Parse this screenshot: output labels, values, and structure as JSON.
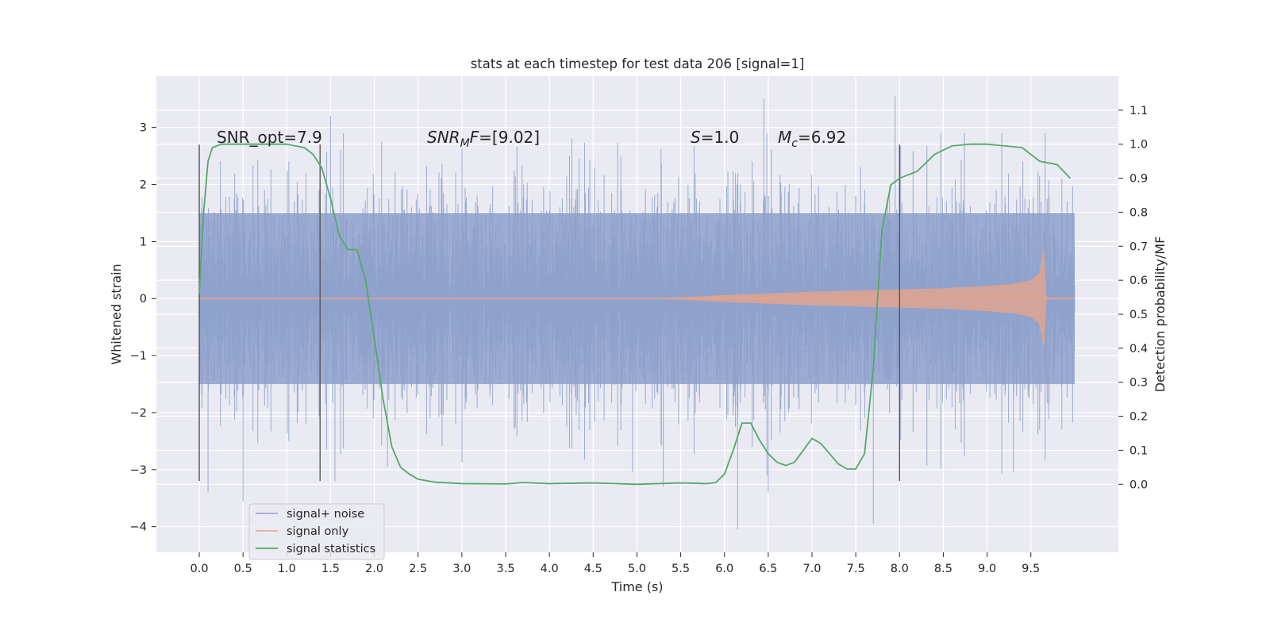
{
  "chart_data": {
    "type": "line",
    "title": "stats at each timestep for test data 206 [signal=1]",
    "xlabel": "Time (s)",
    "ylabel_left": "Whitened strain",
    "ylabel_right": "Detection probability/MF",
    "xlim": [
      -0.49,
      10.5
    ],
    "ylim_left": [
      -4.45,
      3.9
    ],
    "ylim_right": [
      -0.2,
      1.2
    ],
    "x_ticks": [
      "0.0",
      "0.5",
      "1.0",
      "1.5",
      "2.0",
      "2.5",
      "3.0",
      "3.5",
      "4.0",
      "4.5",
      "5.0",
      "5.5",
      "6.0",
      "6.5",
      "7.0",
      "7.5",
      "8.0",
      "8.5",
      "9.0",
      "9.5"
    ],
    "y_ticks_left": [
      "3",
      "2",
      "1",
      "0",
      "−1",
      "−2",
      "−3",
      "−4"
    ],
    "y_ticks_right": [
      "1.1",
      "1.0",
      "0.9",
      "0.8",
      "0.7",
      "0.6",
      "0.5",
      "0.4",
      "0.3",
      "0.2",
      "0.1",
      "0.0"
    ],
    "grid": true,
    "legend_position": "lower-left",
    "annotations": {
      "snr_opt": "SNR_opt=7.9",
      "snr_mf_label": "SNR",
      "snr_mf_sub": "M",
      "snr_mf_italic": "F",
      "snr_mf_value": "=[9.02]",
      "s_label": "S",
      "s_value": "=1.0",
      "mc_label": "M",
      "mc_sub": "c",
      "mc_value": "=6.92"
    },
    "vertical_markers_x": [
      0.0,
      1.38,
      8.0
    ],
    "series": [
      {
        "name": "signal+ noise",
        "color": "#8da0cb",
        "axis": "left",
        "description_points": {
          "x_range": [
            0.0,
            10.0
          ],
          "core_band": [
            -1.5,
            1.5
          ],
          "extreme_values": [
            {
              "x": 0.1,
              "y": -3.4
            },
            {
              "x": 0.5,
              "y": -3.55
            },
            {
              "x": 1.5,
              "y": 3.2
            },
            {
              "x": 1.55,
              "y": -3.2
            },
            {
              "x": 2.15,
              "y": -2.95
            },
            {
              "x": 4.95,
              "y": -3.05
            },
            {
              "x": 5.3,
              "y": -3.3
            },
            {
              "x": 6.15,
              "y": -4.05
            },
            {
              "x": 6.45,
              "y": 3.5
            },
            {
              "x": 6.5,
              "y": -3.4
            },
            {
              "x": 7.7,
              "y": -3.95
            },
            {
              "x": 7.95,
              "y": 3.55
            },
            {
              "x": 9.3,
              "y": -3.05
            }
          ]
        }
      },
      {
        "name": "signal only",
        "color": "#e5a58b",
        "axis": "left",
        "envelope": {
          "x": [
            0.0,
            5.0,
            5.5,
            6.0,
            6.5,
            7.0,
            7.5,
            8.0,
            8.5,
            9.0,
            9.3,
            9.5,
            9.6,
            9.65,
            9.68,
            10.0
          ],
          "amp": [
            0.0,
            0.0,
            0.02,
            0.06,
            0.09,
            0.12,
            0.14,
            0.16,
            0.18,
            0.22,
            0.26,
            0.32,
            0.45,
            0.9,
            0.02,
            0.0
          ]
        }
      },
      {
        "name": "signal statistics",
        "color": "#55a868",
        "axis": "right",
        "x": [
          0.0,
          0.05,
          0.1,
          0.15,
          0.25,
          0.5,
          0.8,
          1.0,
          1.2,
          1.3,
          1.4,
          1.5,
          1.6,
          1.7,
          1.8,
          1.9,
          2.0,
          2.1,
          2.2,
          2.3,
          2.4,
          2.5,
          2.7,
          3.0,
          3.5,
          3.7,
          4.0,
          4.5,
          5.0,
          5.5,
          5.8,
          5.9,
          6.0,
          6.1,
          6.2,
          6.3,
          6.4,
          6.5,
          6.6,
          6.7,
          6.8,
          6.9,
          7.0,
          7.1,
          7.2,
          7.3,
          7.4,
          7.5,
          7.6,
          7.7,
          7.75,
          7.8,
          7.9,
          8.0,
          8.2,
          8.4,
          8.6,
          8.8,
          9.0,
          9.4,
          9.6,
          9.8,
          9.95
        ],
        "y": [
          0.56,
          0.8,
          0.95,
          0.99,
          1.0,
          1.0,
          1.0,
          1.0,
          0.99,
          0.97,
          0.93,
          0.84,
          0.73,
          0.69,
          0.69,
          0.6,
          0.43,
          0.25,
          0.11,
          0.05,
          0.03,
          0.015,
          0.006,
          0.002,
          0.001,
          0.005,
          0.002,
          0.004,
          0.0,
          0.004,
          0.002,
          0.005,
          0.03,
          0.1,
          0.18,
          0.18,
          0.13,
          0.09,
          0.065,
          0.055,
          0.065,
          0.1,
          0.135,
          0.12,
          0.09,
          0.06,
          0.045,
          0.045,
          0.09,
          0.34,
          0.55,
          0.75,
          0.88,
          0.9,
          0.92,
          0.97,
          0.995,
          1.0,
          1.0,
          0.99,
          0.95,
          0.94,
          0.9
        ]
      }
    ]
  }
}
